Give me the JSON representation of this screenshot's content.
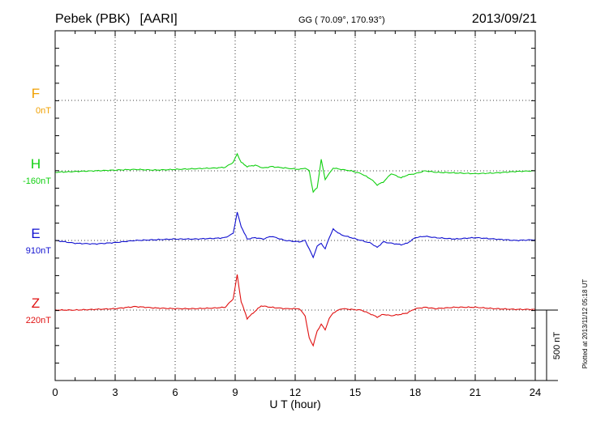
{
  "chart_data": {
    "type": "line",
    "station": "Pebek (PBK)",
    "network": "[AARI]",
    "coords": "GG ( 70.09°, 170.93°)",
    "date": "2013/09/21",
    "xlabel": "U T (hour)",
    "xlim": [
      0,
      24
    ],
    "x_ticks": [
      "0",
      "3",
      "6",
      "9",
      "12",
      "15",
      "18",
      "21",
      "24"
    ],
    "scale_label": "500 nT",
    "plotted_note": "Plotted at 2013/11/12 05:18 UT",
    "grid": true,
    "series": [
      {
        "name": "F",
        "offset_label": "0nT",
        "color": "#f0a000",
        "x": [],
        "values": []
      },
      {
        "name": "H",
        "offset_label": "-160nT",
        "color": "#10d010",
        "x": [
          0,
          1,
          2,
          3,
          4,
          5,
          6,
          7,
          8,
          8.5,
          8.9,
          9.1,
          9.3,
          9.6,
          10,
          10.4,
          10.8,
          11.5,
          12.2,
          12.5,
          12.7,
          12.9,
          13.1,
          13.3,
          13.5,
          13.7,
          13.9,
          14.3,
          14.8,
          15.3,
          15.8,
          16.1,
          16.4,
          16.8,
          17.3,
          17.6,
          18,
          18.5,
          19,
          20,
          21,
          22,
          23,
          24
        ],
        "values": [
          -10,
          -5,
          0,
          5,
          10,
          5,
          10,
          15,
          20,
          25,
          60,
          120,
          60,
          30,
          40,
          20,
          30,
          20,
          10,
          20,
          0,
          -150,
          -120,
          80,
          -60,
          -20,
          20,
          10,
          0,
          -20,
          -60,
          -100,
          -80,
          -20,
          -50,
          -30,
          -20,
          0,
          -10,
          -15,
          -20,
          -15,
          -5,
          0
        ]
      },
      {
        "name": "E",
        "offset_label": "910nT",
        "color": "#1010d0",
        "x": [
          0,
          1,
          2,
          3,
          4,
          5,
          6,
          7,
          8,
          8.5,
          8.9,
          9.1,
          9.3,
          9.6,
          10,
          10.4,
          10.8,
          11.5,
          12.2,
          12.5,
          12.7,
          12.9,
          13.1,
          13.3,
          13.5,
          13.7,
          13.9,
          14.3,
          14.8,
          15.3,
          15.8,
          16.1,
          16.4,
          16.8,
          17.3,
          17.6,
          18,
          18.5,
          19,
          20,
          21,
          22,
          23,
          24
        ],
        "values": [
          0,
          -20,
          -25,
          -15,
          0,
          5,
          10,
          10,
          15,
          20,
          50,
          200,
          100,
          10,
          20,
          10,
          30,
          0,
          -10,
          0,
          -60,
          -120,
          -40,
          -20,
          -60,
          20,
          80,
          40,
          20,
          0,
          -20,
          -50,
          -10,
          -20,
          -30,
          -20,
          20,
          30,
          20,
          10,
          20,
          10,
          0,
          5
        ]
      },
      {
        "name": "Z",
        "offset_label": "220nT",
        "color": "#e01010",
        "x": [
          0,
          1,
          2,
          3,
          4,
          5,
          6,
          7,
          8,
          8.5,
          8.9,
          9.1,
          9.3,
          9.6,
          9.9,
          10.3,
          10.8,
          11.5,
          12.2,
          12.5,
          12.7,
          12.9,
          13.1,
          13.3,
          13.5,
          13.7,
          13.9,
          14.3,
          14.8,
          15.3,
          15.8,
          16.1,
          16.4,
          16.8,
          17.3,
          17.6,
          18,
          18.5,
          19,
          20,
          21,
          22,
          23,
          24
        ],
        "values": [
          0,
          0,
          5,
          10,
          25,
          15,
          10,
          10,
          15,
          20,
          80,
          250,
          60,
          -60,
          -20,
          30,
          20,
          10,
          10,
          -40,
          -200,
          -250,
          -150,
          -100,
          -140,
          -60,
          -20,
          10,
          5,
          0,
          -30,
          -50,
          -30,
          -40,
          -30,
          -20,
          10,
          20,
          10,
          20,
          20,
          10,
          5,
          5
        ]
      }
    ]
  }
}
